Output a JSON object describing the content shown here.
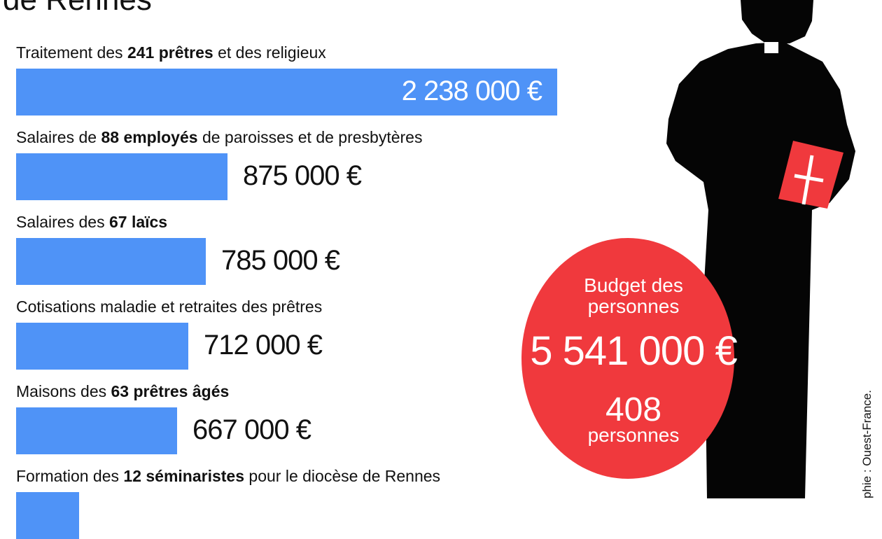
{
  "title": "de Rennes",
  "credit": "phie : Ouest-France.",
  "colors": {
    "bar": "#4f93f7",
    "circle": "#f0393d",
    "silhouette": "#050505",
    "book": "#f0393d"
  },
  "icons": {
    "priest": "priest-silhouette-icon",
    "book": "bible-book-icon"
  },
  "summary": {
    "label": "Budget des personnes",
    "line1": "Budget des",
    "line2": "personnes",
    "total": "5 541 000 €",
    "count_value": "408",
    "count_label": "personnes"
  },
  "chart_data": {
    "type": "bar",
    "orientation": "horizontal",
    "unit": "€",
    "categories": [
      "Traitement des 241 prêtres et des religieux",
      "Salaires de 88 employés de paroisses et de presbytères",
      "Salaires des 67 laïcs",
      "Cotisations maladie et retraites des prêtres",
      "Maisons des 63 prêtres âgés",
      "Formation des 12 séminaristes pour le diocèse de Rennes"
    ],
    "values": [
      2238000,
      875000,
      785000,
      712000,
      667000,
      null
    ],
    "value_labels": [
      "2 238 000 €",
      "875 000 €",
      "785 000 €",
      "712 000 €",
      "667 000 €",
      ""
    ],
    "label_parts": [
      [
        {
          "t": "Traitement des "
        },
        {
          "t": "241 prêtres",
          "b": true
        },
        {
          "t": " et des religieux"
        }
      ],
      [
        {
          "t": "Salaires de "
        },
        {
          "t": "88 employés",
          "b": true
        },
        {
          "t": " de paroisses et de presbytères"
        }
      ],
      [
        {
          "t": "Salaires des "
        },
        {
          "t": "67 laïcs",
          "b": true
        }
      ],
      [
        {
          "t": "Cotisations maladie et retraites des prêtres"
        }
      ],
      [
        {
          "t": "Maisons des "
        },
        {
          "t": "63 prêtres âgés",
          "b": true
        }
      ],
      [
        {
          "t": "Formation des "
        },
        {
          "t": "12 séminaristes",
          "b": true
        },
        {
          "t": " pour le diocèse de Rennes"
        }
      ]
    ]
  }
}
